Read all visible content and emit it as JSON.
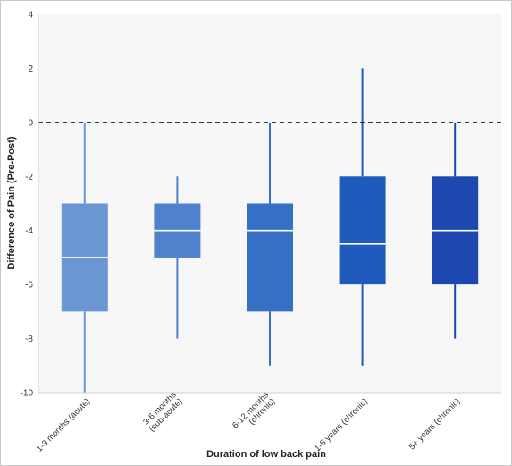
{
  "chart_data": {
    "type": "box",
    "xlabel": "Duration of low back pain",
    "ylabel": "Difference of Pain (Pre-Post)",
    "ylim": [
      -10,
      4
    ],
    "yticks": [
      4,
      2,
      0,
      -2,
      -4,
      -6,
      -8,
      -10
    ],
    "reference_line": {
      "y": 0,
      "style": "dashed"
    },
    "grid": false,
    "categories": [
      {
        "label": "1-3 months (acute)",
        "label_lines": [
          "1-3 months (acute)"
        ],
        "min": -10,
        "q1": -7,
        "median": -5,
        "q3": -3,
        "max": 0,
        "color": "#6a96d3"
      },
      {
        "label": "3-6 months (sub-acute)",
        "label_lines": [
          "3-6 months",
          "(sub-acute)"
        ],
        "min": -8,
        "q1": -5,
        "median": -4,
        "q3": -3,
        "max": -2,
        "color": "#4f82cc"
      },
      {
        "label": "6-12 months (chronic)",
        "label_lines": [
          "6-12 months",
          "(chronic)"
        ],
        "min": -9,
        "q1": -7,
        "median": -4,
        "q3": -3,
        "max": 0,
        "color": "#3670c4"
      },
      {
        "label": "1-5 years (chronic)",
        "label_lines": [
          "1-5 years (chronic)"
        ],
        "min": -9,
        "q1": -6,
        "median": -4.5,
        "q3": -2,
        "max": 2,
        "color": "#1f5bbd"
      },
      {
        "label": "5+ years (chronic)",
        "label_lines": [
          "5+ years (chronic)"
        ],
        "min": -8,
        "q1": -6,
        "median": -4,
        "q3": -2,
        "max": 0,
        "color": "#1c48b0"
      }
    ]
  }
}
